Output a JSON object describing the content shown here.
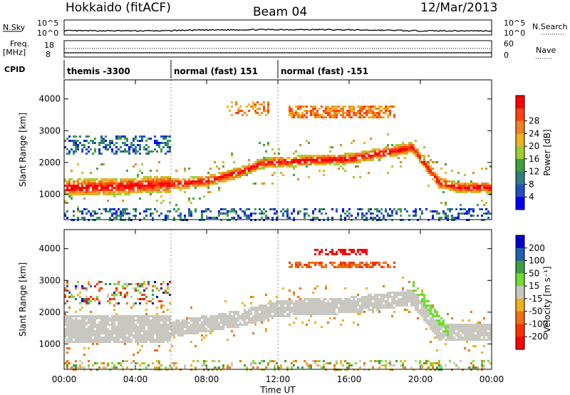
{
  "header": {
    "station": "Hokkaido (fitACF)",
    "beam": "Beam 04",
    "date": "12/Mar/2013"
  },
  "strip_labels": {
    "nsky": "N.Sky",
    "nsearch": "N.Search",
    "freq": "Freq.",
    "freq_unit": "[MHz]",
    "nave": "Nave",
    "cpid": "CPID",
    "noise_top_left": "10^5",
    "noise_bottom_left": "10^0",
    "noise_top_right": "10^5",
    "noise_bottom_right": "10^0",
    "freq_top": "18",
    "freq_bottom": "8",
    "nave_top": "60",
    "nave_bottom": "0"
  },
  "cpid_segments": [
    {
      "label": "themis -3300",
      "start_hour": 0.0,
      "end_hour": 6.0
    },
    {
      "label": "normal (fast) 151",
      "start_hour": 6.0,
      "end_hour": 12.0
    },
    {
      "label": "normal (fast) -151",
      "start_hour": 12.0,
      "end_hour": 24.0
    }
  ],
  "chart_data": [
    {
      "type": "heatmap",
      "panel": "power",
      "ylabel": "Slant Range [km]",
      "xlabel": "Time UT",
      "xlim": [
        0,
        24
      ],
      "ylim": [
        200,
        4600
      ],
      "x_ticks": [
        "00:00",
        "04:00",
        "08:00",
        "12:00",
        "16:00",
        "20:00",
        "00:00"
      ],
      "y_ticks": [
        1000,
        2000,
        3000,
        4000
      ],
      "colorbar": {
        "label": "Power [dB]",
        "ticks": [
          4,
          8,
          12,
          16,
          20,
          24,
          28
        ],
        "range": [
          0,
          30
        ],
        "colors": [
          "#0000ff",
          "#1f4fc0",
          "#2f7f7f",
          "#3fa040",
          "#9ccf30",
          "#f0b020",
          "#f08020",
          "#ff4010",
          "#ff0000"
        ]
      },
      "features": [
        {
          "name": "main echo band",
          "x": [
            0,
            2,
            4,
            6,
            8,
            10,
            11,
            12,
            14,
            16,
            18,
            19.5,
            21,
            22,
            24
          ],
          "y": [
            1250,
            1250,
            1300,
            1350,
            1450,
            1750,
            2000,
            2050,
            2100,
            2150,
            2350,
            2500,
            1400,
            1250,
            1250
          ],
          "power_db": 26
        },
        {
          "name": "upper scatter (early)",
          "x": [
            0,
            6
          ],
          "y": [
            2400,
            2700
          ],
          "power_db": 10
        },
        {
          "name": "high-range echoes",
          "x": [
            12,
            18
          ],
          "y": [
            3400,
            3700
          ],
          "power_db": 22
        },
        {
          "name": "near-range clutter",
          "x": [
            0,
            24
          ],
          "y": [
            300,
            600
          ],
          "power_db": 8
        }
      ]
    },
    {
      "type": "heatmap",
      "panel": "velocity",
      "ylabel": "Slant Range [km]",
      "xlabel": "Time UT",
      "xlim": [
        0,
        24
      ],
      "ylim": [
        200,
        4600
      ],
      "x_ticks": [
        "00:00",
        "04:00",
        "08:00",
        "12:00",
        "16:00",
        "20:00",
        "00:00"
      ],
      "y_ticks": [
        1000,
        2000,
        3000,
        4000
      ],
      "colorbar": {
        "label": "Velocity [m s⁻¹]",
        "ticks": [
          200,
          100,
          50,
          15,
          -15,
          -50,
          -100,
          -200
        ],
        "colors": [
          "#0000cc",
          "#2060b0",
          "#3aa040",
          "#70dd30",
          "#c8c8c0",
          "#f0b020",
          "#f07010",
          "#ff3000",
          "#ff0000"
        ]
      },
      "features": [
        {
          "name": "ground scatter band",
          "x": [
            0,
            6,
            10,
            12,
            16,
            19.5,
            21,
            24
          ],
          "y": [
            1500,
            1500,
            1850,
            2150,
            2250,
            2500,
            1400,
            1400
          ],
          "velocity_ms": 0
        },
        {
          "name": "positive velocity streak",
          "x": [
            19.5,
            21.5
          ],
          "y": [
            2900,
            1400
          ],
          "velocity_ms": 50
        },
        {
          "name": "negative velocity echoes",
          "x": [
            13,
            18
          ],
          "y": [
            3500,
            4000
          ],
          "velocity_ms": -100
        }
      ]
    }
  ]
}
